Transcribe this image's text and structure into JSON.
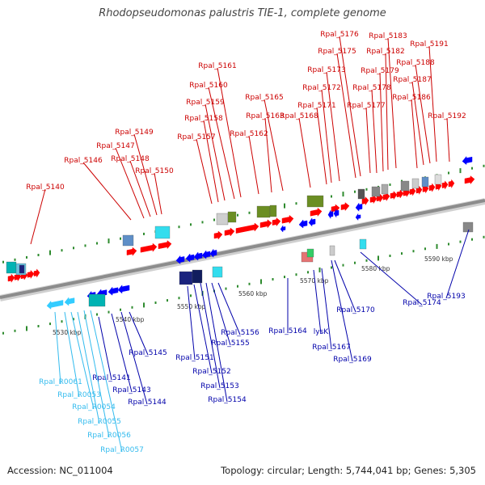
{
  "title": "Rhodopseudomonas palustris TIE-1, complete genome",
  "accession": "Accession: NC_011004",
  "topology": "Topology: circular; Length: 5,744,041 bp; Genes: 5,305",
  "colors": {
    "forward_gene": "#ff0000",
    "reverse_gene": "#0000ff",
    "rna_gene": "#33ccff",
    "backbone": "#8c8c8c",
    "tick": "#2e8b2e"
  },
  "scale_labels": [
    "5530 kbp",
    "5540 kbp",
    "5550 kbp",
    "5560 kbp",
    "5570 kbp",
    "5580 kbp",
    "5590 kbp"
  ],
  "top_labels": [
    "Rpal_5140",
    "Rpal_5146",
    "Rpal_5147",
    "Rpal_5148",
    "Rpal_5149",
    "Rpal_5150",
    "Rpal_5157",
    "Rpal_5158",
    "Rpal_5159",
    "Rpal_5160",
    "Rpal_5161",
    "Rpal_5162",
    "Rpal_5163",
    "Rpal_5165",
    "Rpal_5168",
    "Rpal_5171",
    "Rpal_5172",
    "Rpal_5173",
    "Rpal_5175",
    "Rpal_5176",
    "Rpal_5177",
    "Rpal_5178",
    "Rpal_5179",
    "Rpal_5182",
    "Rpal_5183",
    "Rpal_5186",
    "Rpal_5187",
    "Rpal_5188",
    "Rpal_5191",
    "Rpal_5192"
  ],
  "bottom_labels": [
    "Rpal_5141",
    "Rpal_5143",
    "Rpal_5144",
    "Rpal_5145",
    "Rpal_5151",
    "Rpal_5152",
    "Rpal_5153",
    "Rpal_5154",
    "Rpal_5155",
    "Rpal_5156",
    "Rpal_5164",
    "lysK",
    "Rpal_5167",
    "Rpal_5169",
    "Rpal_5170",
    "Rpal_5174",
    "Rpal_5193"
  ],
  "rna_labels": [
    "Rpal_R0061",
    "Rpal_R0053",
    "Rpal_R0054",
    "Rpal_R0055",
    "Rpal_R0056",
    "Rpal_R0057"
  ]
}
